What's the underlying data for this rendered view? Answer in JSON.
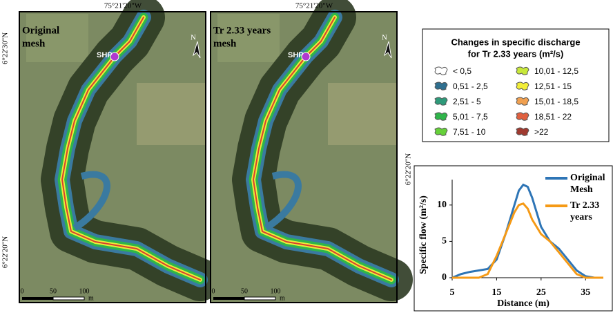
{
  "maps": [
    {
      "title": [
        "Original",
        "mesh"
      ],
      "lon": "75°21'20\"W",
      "shp": "SHP",
      "north": "N",
      "scale": [
        "0",
        "50",
        "100"
      ],
      "unit": "m"
    },
    {
      "title": [
        "Tr 2.33 years",
        "mesh"
      ],
      "lon": "75°21'20\"W",
      "shp": "SHP",
      "north": "N",
      "scale": [
        "0",
        "50",
        "100"
      ],
      "unit": "m"
    }
  ],
  "lat_labels": [
    "6°22'30\"N",
    "6°22'20\"N",
    "6°22'20\"N"
  ],
  "legend": {
    "title": [
      "Changes in specific discharge",
      "for Tr 2.33 years (m²/s)"
    ],
    "items": [
      {
        "label": "< 0,5",
        "color": "#ffffff"
      },
      {
        "label": "0,51 - 2,5",
        "color": "#2f6f8f"
      },
      {
        "label": "2,51 - 5",
        "color": "#2e9a7a"
      },
      {
        "label": "5,01 - 7,5",
        "color": "#2fb54a"
      },
      {
        "label": "7,51 - 10",
        "color": "#66d13a"
      },
      {
        "label": "10,01 - 12,5",
        "color": "#c8e83a"
      },
      {
        "label": "12,51 - 15",
        "color": "#f2ee38"
      },
      {
        "label": "15,01 - 18,5",
        "color": "#f0a050"
      },
      {
        "label": "18,51 - 22",
        "color": "#e06040"
      },
      {
        "label": ">22",
        "color": "#a03a30"
      }
    ]
  },
  "chart_data": {
    "type": "line",
    "xlabel": "Distance (m)",
    "ylabel": "Specific flow  (m²/s)",
    "x": [
      5,
      7,
      9,
      11,
      13,
      15,
      17,
      19,
      20,
      21,
      22,
      23,
      24,
      25,
      27,
      29,
      31,
      33,
      35,
      37,
      39
    ],
    "series": [
      {
        "name": "Original Mesh",
        "color": "#2e75b6",
        "values": [
          0,
          0.5,
          0.8,
          1,
          1.2,
          2.5,
          6,
          10,
          12,
          12.8,
          12.5,
          11,
          9,
          7,
          5,
          4,
          2.5,
          1,
          0.2,
          0,
          0
        ]
      },
      {
        "name": "Tr 2.33 years",
        "color": "#f59a16",
        "values": [
          0,
          0,
          0,
          0,
          0.5,
          3,
          6,
          9,
          10,
          10.2,
          9.5,
          8,
          7,
          6,
          5,
          3.5,
          2,
          0.5,
          0,
          0,
          0
        ]
      }
    ],
    "xlim": [
      5,
      39
    ],
    "ylim": [
      0,
      13.5
    ],
    "xticks": [
      5,
      15,
      25,
      35
    ],
    "yticks": [
      0,
      5,
      10
    ]
  }
}
